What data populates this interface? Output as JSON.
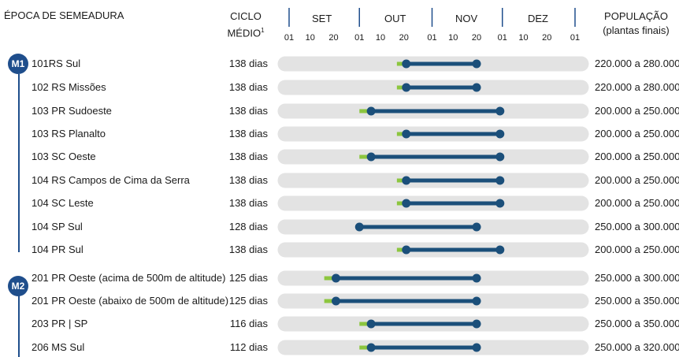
{
  "header": {
    "epoca": "ÉPOCA DE SEMEADURA",
    "ciclo_line1": "CICLO",
    "ciclo_line2": "MÉDIO",
    "ciclo_sup": "1",
    "pop_line1": "POPULAÇÃO",
    "pop_line2": "(plantas finais)"
  },
  "months": [
    "SET",
    "OUT",
    "NOV",
    "DEZ"
  ],
  "day_ticks": [
    "01",
    "10",
    "20",
    "01",
    "10",
    "20",
    "01",
    "10",
    "20",
    "01",
    "10",
    "20",
    "01"
  ],
  "groups": [
    {
      "badge": "M1",
      "first_row": 0,
      "last_row": 8
    },
    {
      "badge": "M2",
      "first_row": 9,
      "last_row": 12
    }
  ],
  "colors": {
    "track": "#e3e3e3",
    "extended": "#8cc63f",
    "optimal": "#1b4f7a",
    "badge": "#1f4e8c"
  },
  "chart_data": {
    "type": "range",
    "x_axis": "dias a partir de 01/set",
    "categories": [
      "101RS Sul",
      "102 RS Missões",
      "103 PR Sudoeste",
      "103 RS Planalto",
      "103 SC Oeste",
      "104 RS Campos de Cima da Serra",
      "104 SC Leste",
      "104 SP Sul",
      "104 PR Sul",
      "201 PR Oeste (acima de 500m de altitude)",
      "201 PR Oeste (abaixo de 500m de altitude)",
      "203 PR | SP",
      "206 MS Sul"
    ],
    "cycle": [
      "138 dias",
      "138 dias",
      "138 dias",
      "138 dias",
      "138 dias",
      "138 dias",
      "138 dias",
      "128 dias",
      "138 dias",
      "125 dias",
      "125 dias",
      "116 dias",
      "112 dias"
    ],
    "population": [
      "220.000 a 280.000",
      "220.000 a 280.000",
      "200.000 a 250.000",
      "200.000 a 250.000",
      "200.000 a 250.000",
      "200.000 a 250.000",
      "200.000 a 250.000",
      "250.000 a 300.000",
      "200.000 a 250.000",
      "250.000 a 300.000",
      "250.000 a 350.000",
      "250.000 a 350.000",
      "250.000 a 320.000"
    ],
    "extended_window": [
      [
        46,
        80
      ],
      [
        46,
        80
      ],
      [
        30,
        85
      ],
      [
        46,
        85
      ],
      [
        30,
        85
      ],
      [
        46,
        85
      ],
      [
        46,
        85
      ],
      [
        30,
        80
      ],
      [
        46,
        85
      ],
      [
        15,
        80
      ],
      [
        15,
        80
      ],
      [
        30,
        80
      ],
      [
        30,
        80
      ]
    ],
    "optimal_window": [
      [
        50,
        80
      ],
      [
        50,
        80
      ],
      [
        35,
        90
      ],
      [
        50,
        90
      ],
      [
        35,
        90
      ],
      [
        50,
        90
      ],
      [
        50,
        90
      ],
      [
        30,
        80
      ],
      [
        50,
        90
      ],
      [
        20,
        80
      ],
      [
        20,
        80
      ],
      [
        35,
        80
      ],
      [
        35,
        80
      ]
    ],
    "xlim": [
      0,
      122
    ]
  }
}
